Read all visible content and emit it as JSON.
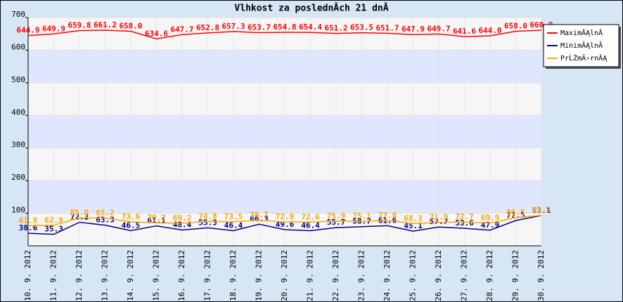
{
  "chart_data": {
    "type": "line",
    "title": "Vlhkost za poslednĂ­ch 21 dnĂ­",
    "categories": [
      "10. 9. 2012",
      "11. 9. 2012",
      "12. 9. 2012",
      "13. 9. 2012",
      "14. 9. 2012",
      "15. 9. 2012",
      "16. 9. 2012",
      "17. 9. 2012",
      "18. 9. 2012",
      "19. 9. 2012",
      "20. 9. 2012",
      "21. 9. 2012",
      "22. 9. 2012",
      "23. 9. 2012",
      "24. 9. 2012",
      "25. 9. 2012",
      "26. 9. 2012",
      "27. 9. 2012",
      "28. 9. 2012",
      "29. 9. 2012",
      "30. 9. 2012"
    ],
    "series": [
      {
        "name": "MaximĂĄlnĂ­",
        "color": "#ff0000",
        "values": [
          644.9,
          649.9,
          659.8,
          661.2,
          658.0,
          634.6,
          647.7,
          652.8,
          657.3,
          653.7,
          654.8,
          654.4,
          651.2,
          653.5,
          651.7,
          647.9,
          649.7,
          641.6,
          644.0,
          658.0,
          660.9
        ],
        "value_labels": [
          "644.9",
          "649.9",
          "659.8",
          "661.2",
          "658.0",
          "634.6",
          "647.7",
          "652.8",
          "657.3",
          "653.7",
          "654.8",
          "654.4",
          "651.2",
          "653.5",
          "651.7",
          "647.9",
          "649.7",
          "641.6",
          "644.0",
          "658.0",
          "660.9"
        ]
      },
      {
        "name": "MinimĂĄlnĂ­",
        "color": "#000080",
        "values": [
          38.6,
          35.3,
          72.2,
          63.3,
          46.5,
          61.1,
          48.4,
          55.3,
          46.4,
          66.3,
          49.6,
          46.4,
          55.7,
          58.7,
          61.6,
          45.1,
          57.7,
          53.6,
          47.9,
          77.5,
          93.1
        ],
        "value_labels": [
          "38.6",
          "35.3",
          "72.2",
          "63.3",
          "46.5",
          "61.1",
          "48.4",
          "55.3",
          "46.4",
          "66.3",
          "49.6",
          "46.4",
          "55.7",
          "58.7",
          "61.6",
          "45.1",
          "57.7",
          "53.6",
          "47.9",
          "77.5",
          "93.1"
        ]
      },
      {
        "name": "PrĹŻmÄ›rnĂĄ",
        "color": "#ffa500",
        "values": [
          61.8,
          62.9,
          85.8,
          85.2,
          73.6,
          70.2,
          69.2,
          74.8,
          73.5,
          78.7,
          72.9,
          72.6,
          75.9,
          75.1,
          77.8,
          68.3,
          71.9,
          72.7,
          69.9,
          86.5,
          93.5
        ],
        "value_labels": [
          "61.8",
          "62.9",
          "85.8",
          "85.2",
          "73.6",
          "70.2",
          "69.2",
          "74.8",
          "73.5",
          "78.7",
          "72.9",
          "72.6",
          "75.9",
          "75.1",
          "77.8",
          "68.3",
          "71.9",
          "72.7",
          "69.9",
          "86.5",
          "93.5"
        ]
      }
    ],
    "ylim": [
      0,
      700
    ],
    "yticks": [
      100,
      200,
      300,
      400,
      500,
      600,
      700
    ],
    "grid": true,
    "legend": "top-right"
  }
}
